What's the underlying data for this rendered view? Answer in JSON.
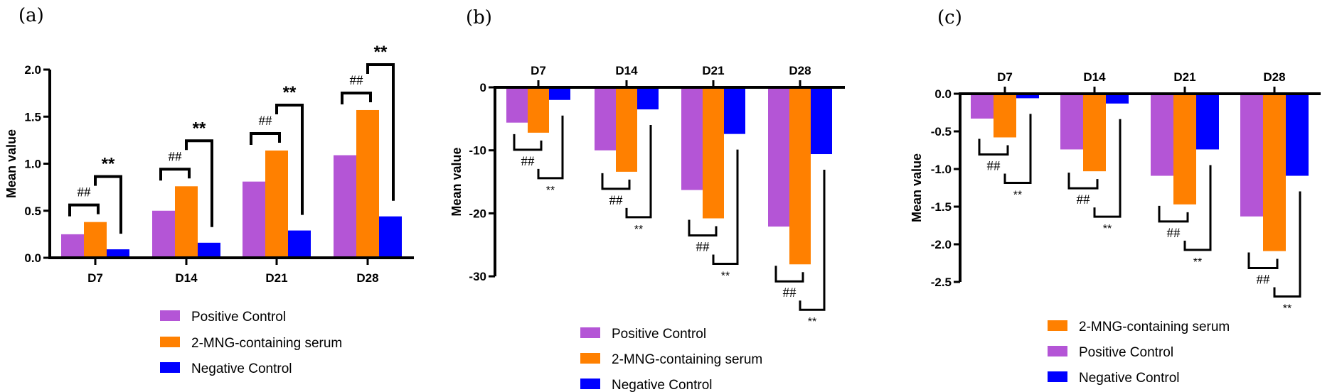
{
  "colors": {
    "Positive Control": "#B455D6",
    "2-MNG-containing serum": "#FF8000",
    "Negative Control": "#0000FF"
  },
  "chart_data": [
    {
      "panel": "(a)",
      "type": "bar",
      "ylabel": "Mean value",
      "xlabel": "",
      "categories": [
        "D7",
        "D14",
        "D21",
        "D28"
      ],
      "ylim": [
        0,
        2.0
      ],
      "yticks": [
        "0.0",
        "0.5",
        "1.0",
        "1.5",
        "2.0"
      ],
      "ytick_values": [
        0,
        0.5,
        1.0,
        1.5,
        2.0
      ],
      "xaxis_position": "bottom",
      "grid": false,
      "series": [
        {
          "name": "Positive Control",
          "values": [
            0.25,
            0.5,
            0.81,
            1.09
          ]
        },
        {
          "name": "2-MNG-containing serum",
          "values": [
            0.38,
            0.76,
            1.14,
            1.57
          ]
        },
        {
          "name": "Negative Control",
          "values": [
            0.09,
            0.16,
            0.29,
            0.44
          ]
        }
      ],
      "legend": [
        "Positive Control",
        "2-MNG-containing serum",
        "Negative Control"
      ],
      "legend_placement": "bottom",
      "annotations": {
        "vs_positive": "##",
        "vs_negative": "**"
      }
    },
    {
      "panel": "(b)",
      "type": "bar",
      "ylabel": "Mean value",
      "xlabel": "",
      "categories": [
        "D7",
        "D14",
        "D21",
        "D28"
      ],
      "ylim": [
        -30,
        0
      ],
      "yticks": [
        "0",
        "-10",
        "-20",
        "-30"
      ],
      "ytick_values": [
        0,
        -10,
        -20,
        -30
      ],
      "xaxis_position": "top",
      "grid": false,
      "series": [
        {
          "name": "Positive Control",
          "values": [
            -5.6,
            -10.0,
            -16.3,
            -22.1
          ]
        },
        {
          "name": "2-MNG-containing serum",
          "values": [
            -7.2,
            -13.4,
            -20.8,
            -28.1
          ]
        },
        {
          "name": "Negative Control",
          "values": [
            -2.0,
            -3.5,
            -7.4,
            -10.6
          ]
        }
      ],
      "legend": [
        "Positive Control",
        "2-MNG-containing serum",
        "Negative Control"
      ],
      "legend_placement": "bottom",
      "annotations": {
        "vs_positive": "##",
        "vs_negative": "**"
      }
    },
    {
      "panel": "(c)",
      "type": "bar",
      "ylabel": "Mean value",
      "xlabel": "",
      "categories": [
        "D7",
        "D14",
        "D21",
        "D28"
      ],
      "ylim": [
        -2.5,
        0
      ],
      "yticks": [
        "0.0",
        "-0.5",
        "-1.0",
        "-1.5",
        "-2.0",
        "-2.5"
      ],
      "ytick_values": [
        0,
        -0.5,
        -1.0,
        -1.5,
        -2.0,
        -2.5
      ],
      "xaxis_position": "top",
      "grid": false,
      "series": [
        {
          "name": "Positive Control",
          "values": [
            -0.33,
            -0.74,
            -1.09,
            -1.63
          ]
        },
        {
          "name": "2-MNG-containing serum",
          "values": [
            -0.58,
            -1.03,
            -1.47,
            -2.09
          ]
        },
        {
          "name": "Negative Control",
          "values": [
            -0.06,
            -0.13,
            -0.74,
            -1.09
          ]
        }
      ],
      "legend": [
        "2-MNG-containing serum",
        "Positive Control",
        "Negative Control"
      ],
      "legend_placement": "bottom",
      "annotations": {
        "vs_positive": "##",
        "vs_negative": "**"
      }
    }
  ]
}
